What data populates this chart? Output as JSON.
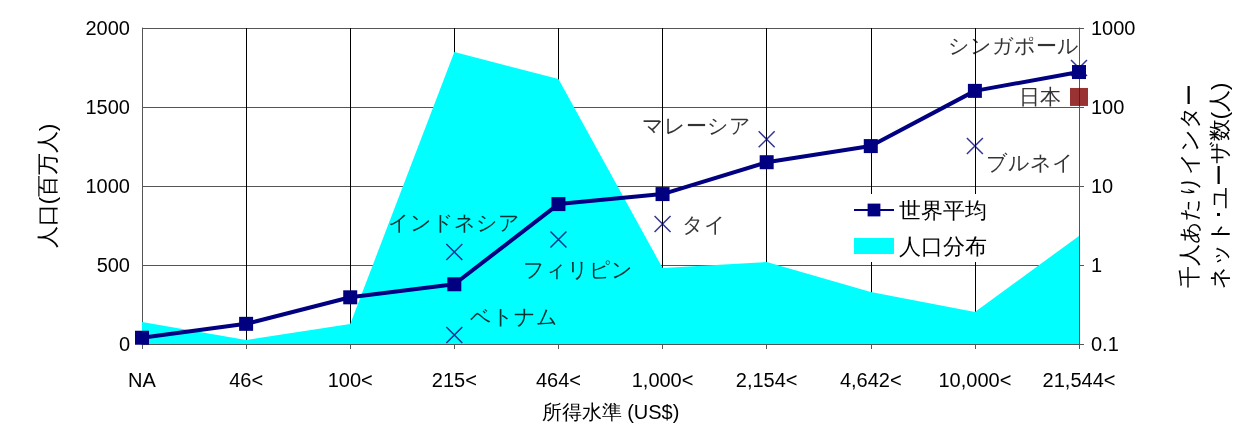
{
  "chart_data": {
    "type": "line",
    "xlabel": "所得水準 (US$)",
    "ylabel": "人口(百万人)",
    "y2label": "千人あたりインターネット･ユーザ数(人)",
    "categories": [
      "NA",
      "46<",
      "100<",
      "215<",
      "464<",
      "1,000<",
      "2,154<",
      "4,642<",
      "10,000<",
      "21,544<"
    ],
    "series": [
      {
        "name": "人口分布",
        "type": "area",
        "color": "#00ffff",
        "marker": "none",
        "values": [
          139,
          25,
          127,
          1848,
          1677,
          481,
          519,
          329,
          203,
          684
        ]
      },
      {
        "name": "世界平均",
        "color": "#000080",
        "marker": "square",
        "axis": "y2",
        "values": [
          0.12,
          0.18,
          0.39,
          0.57,
          5.9,
          7.9,
          20,
          32,
          160,
          277
        ]
      },
      {
        "type": "scatter",
        "color": "#000080",
        "marker": "cross",
        "axis": "y2",
        "x": [
          "215<",
          "215<",
          "464<",
          "1,000<",
          "2,154<",
          "10,000<",
          "21,544<"
        ],
        "values": [
          0.13,
          1.46,
          2.1,
          3.3,
          39,
          32,
          312
        ],
        "value_labels": [
          "ベトナム",
          "インドネシア",
          "フィリピン",
          "タイ",
          "マレーシア",
          "ブルネイ",
          "シンガポール"
        ]
      },
      {
        "type": "scatter",
        "color": "#800000",
        "marker": "square",
        "axis": "y2",
        "x": [
          "21,544<"
        ],
        "values": [
          134
        ],
        "value_labels": [
          "日本"
        ]
      }
    ],
    "ylim": [
      0,
      2000
    ],
    "yticks": [
      0,
      500,
      1000,
      1500,
      2000
    ],
    "y2lim": [
      0.1,
      1000
    ],
    "y2ticks": [
      0.1,
      1,
      10,
      100,
      1000
    ],
    "log": "y2",
    "grid": true,
    "legend": "right"
  }
}
